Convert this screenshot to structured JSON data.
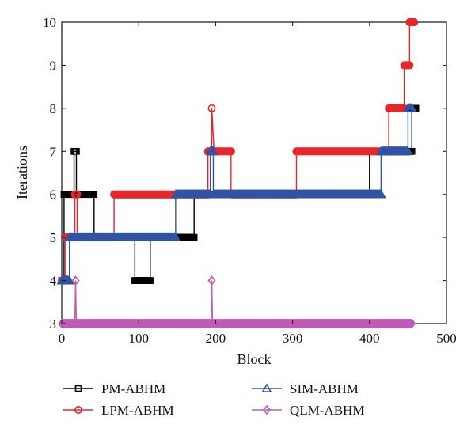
{
  "chart_data": {
    "type": "line",
    "title": "",
    "xlabel": "Block",
    "ylabel": "Iterations",
    "xlim": [
      0,
      500
    ],
    "ylim": [
      3,
      10
    ],
    "xticks": [
      0,
      100,
      200,
      300,
      400,
      500
    ],
    "yticks": [
      3,
      4,
      5,
      6,
      7,
      8,
      9,
      10
    ],
    "grid": false,
    "legend_position": "bottom",
    "series": [
      {
        "name": "PM-ABHM",
        "color": "#000000",
        "marker": "square",
        "x": [
          0,
          3,
          3,
          16,
          16,
          19,
          19,
          42,
          42,
          95,
          95,
          115,
          115,
          148,
          148,
          172,
          172,
          400,
          400,
          412,
          412,
          455,
          455,
          460
        ],
        "y": [
          4,
          4,
          6,
          6,
          7,
          7,
          6,
          6,
          5,
          5,
          4,
          4,
          5,
          5,
          5,
          5,
          6,
          6,
          7,
          7,
          7,
          7,
          8,
          8
        ]
      },
      {
        "name": "LPM-ABHM",
        "color": "#e8262a",
        "marker": "circle",
        "x": [
          0,
          5,
          5,
          17,
          17,
          20,
          20,
          68,
          68,
          190,
          190,
          195,
          195,
          198,
          198,
          220,
          220,
          305,
          305,
          425,
          425,
          445,
          445,
          452,
          452,
          458
        ],
        "y": [
          4,
          4,
          5,
          5,
          6,
          6,
          5,
          5,
          6,
          6,
          7,
          7,
          8,
          7,
          7,
          7,
          6,
          6,
          7,
          7,
          8,
          8,
          9,
          9,
          10,
          10
        ]
      },
      {
        "name": "SIM-ABHM",
        "color": "#3353a5",
        "marker": "triangle",
        "x": [
          0,
          10,
          10,
          148,
          148,
          193,
          193,
          197,
          197,
          415,
          415,
          450,
          450,
          455
        ],
        "y": [
          4,
          4,
          5,
          5,
          6,
          6,
          7,
          7,
          6,
          6,
          7,
          7,
          8,
          8
        ]
      },
      {
        "name": "QLM-ABHM",
        "color": "#c05bb5",
        "marker": "diamond",
        "x": [
          0,
          17,
          18,
          19,
          194,
          195,
          196,
          455
        ],
        "y": [
          3,
          3,
          4,
          3,
          3,
          4,
          3,
          3
        ]
      }
    ]
  }
}
